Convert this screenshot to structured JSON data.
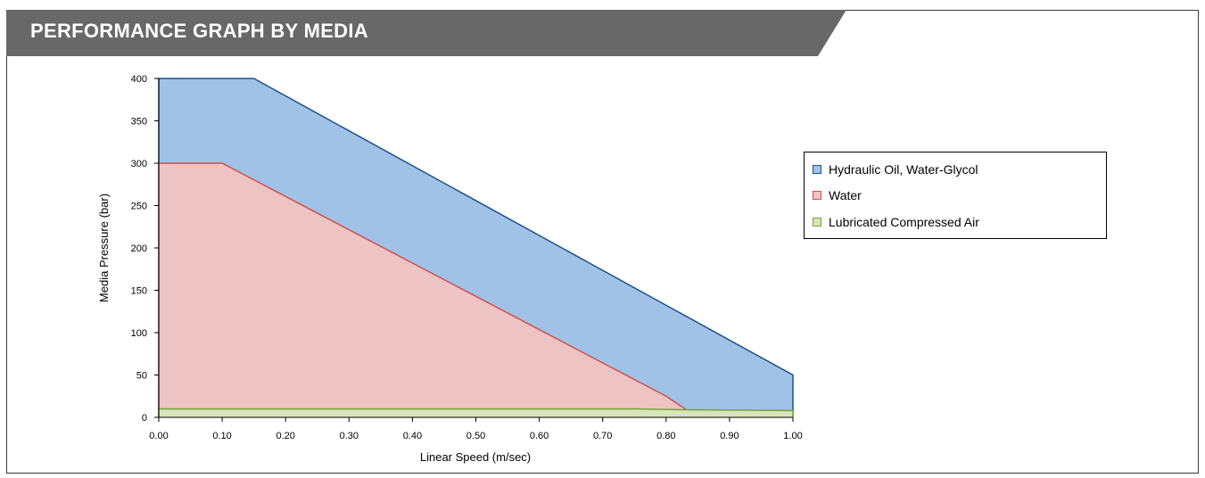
{
  "header": {
    "title": "PERFORMANCE GRAPH BY MEDIA"
  },
  "chart_data": {
    "type": "area",
    "xlabel": "Linear Speed (m/sec)",
    "ylabel": "Media Pressure (bar)",
    "xlim": [
      0,
      1.0
    ],
    "ylim": [
      0,
      400
    ],
    "x_ticks": [
      "0.00",
      "0.10",
      "0.20",
      "0.30",
      "0.40",
      "0.50",
      "0.60",
      "0.70",
      "0.80",
      "0.90",
      "1.00"
    ],
    "y_ticks": [
      "0",
      "50",
      "100",
      "150",
      "200",
      "250",
      "300",
      "350",
      "400"
    ],
    "legend_position": "right",
    "grid": false,
    "series": [
      {
        "name": "Hydraulic Oil, Water-Glycol",
        "fill": "#a0c2e6",
        "stroke": "#1f4f8c",
        "points": [
          [
            0,
            400
          ],
          [
            0.15,
            400
          ],
          [
            1.0,
            50
          ]
        ]
      },
      {
        "name": "Water",
        "fill": "#eec3c3",
        "stroke": "#d0504f",
        "points": [
          [
            0,
            300
          ],
          [
            0.1,
            300
          ],
          [
            0.8,
            25
          ],
          [
            0.83,
            10
          ]
        ]
      },
      {
        "name": "Lubricated Compressed Air",
        "fill": "#d8e4bc",
        "stroke": "#77a33a",
        "points": [
          [
            0,
            10
          ],
          [
            0.75,
            10
          ],
          [
            0.83,
            9
          ],
          [
            1.0,
            8
          ]
        ]
      }
    ]
  }
}
